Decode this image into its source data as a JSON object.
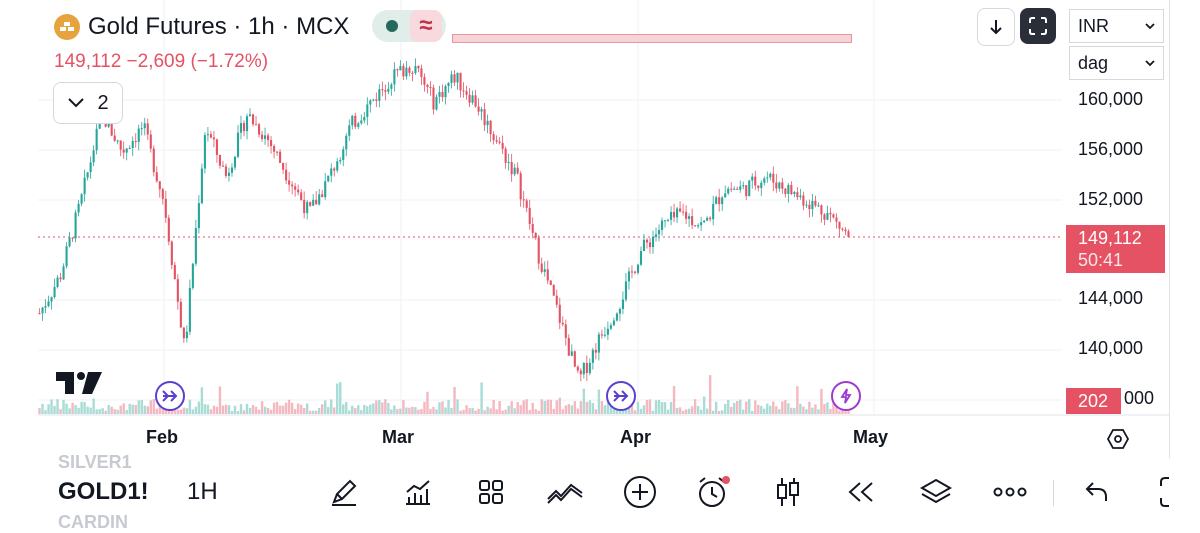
{
  "header": {
    "title": "Gold Futures · 1h · MCX",
    "price_line": "149,112 −2,609 (−1.72%)",
    "approx_symbol": "≈",
    "collapse_count": "2",
    "currency": "INR",
    "interval_unit": "dag"
  },
  "price_axis": {
    "ticks": [
      "160,000",
      "156,000",
      "152,000",
      "144,000",
      "140,000",
      "000"
    ]
  },
  "time_axis": {
    "labels": [
      "Feb",
      "Mar",
      "Apr",
      "May"
    ]
  },
  "last_price_tag": {
    "price": "149,112",
    "countdown": "50:41"
  },
  "volume_tag": "202",
  "bottom_bar": {
    "symbol": "GOLD1!",
    "timeframe": "1H",
    "ghost_above": "SILVER1",
    "ghost_below": "CARDIN",
    "tools": [
      "drawing-pen-icon",
      "indicators-icon",
      "templates-grid-icon",
      "compare-icon",
      "add-icon",
      "alert-clock-icon",
      "candle-type-icon",
      "replay-icon",
      "layers-icon",
      "more-icon",
      "undo-icon",
      "fullscreen-icon"
    ]
  },
  "markers": [
    "event-marker-arrow-icon",
    "event-marker-arrow-icon",
    "lightning-marker-icon"
  ],
  "colors": {
    "up": "#26a69a",
    "down": "#e45264",
    "accent": "#e45264",
    "marker": "#5b3fd0",
    "lightning": "#9b3bd1"
  },
  "chart_data": {
    "type": "candlestick",
    "timeframe": "1h",
    "x_labels": [
      "Feb",
      "Mar",
      "Apr",
      "May"
    ],
    "ylim": [
      137000,
      164000
    ],
    "y_ticks": [
      140000,
      144000,
      152000,
      156000,
      160000
    ],
    "last_price": 149112,
    "close_path": [
      [
        "Jan-14",
        143000
      ],
      [
        "Jan-17",
        146000
      ],
      [
        "Jan-20",
        152000
      ],
      [
        "Jan-23",
        159000
      ],
      [
        "Jan-26",
        156000
      ],
      [
        "Jan-28",
        158000
      ],
      [
        "Jan-30",
        152000
      ],
      [
        "Feb-01",
        140000
      ],
      [
        "Feb-03",
        158000
      ],
      [
        "Feb-06",
        154000
      ],
      [
        "Feb-08",
        159000
      ],
      [
        "Feb-11",
        157000
      ],
      [
        "Feb-13",
        154000
      ],
      [
        "Feb-16",
        151000
      ],
      [
        "Feb-18",
        154000
      ],
      [
        "Feb-21",
        158000
      ],
      [
        "Feb-23",
        160000
      ],
      [
        "Feb-26",
        162000
      ],
      [
        "Mar-01",
        163000
      ],
      [
        "Mar-04",
        160000
      ],
      [
        "Mar-07",
        162000
      ],
      [
        "Mar-09",
        160000
      ],
      [
        "Mar-12",
        157000
      ],
      [
        "Mar-15",
        154000
      ],
      [
        "Mar-18",
        148000
      ],
      [
        "Mar-20",
        143000
      ],
      [
        "Mar-22",
        137500
      ],
      [
        "Mar-24",
        141000
      ],
      [
        "Mar-27",
        144000
      ],
      [
        "Mar-30",
        148000
      ],
      [
        "Apr-01",
        150000
      ],
      [
        "Apr-03",
        151000
      ],
      [
        "Apr-06",
        150000
      ],
      [
        "Apr-09",
        153000
      ],
      [
        "Apr-12",
        153000
      ],
      [
        "Apr-15",
        154000
      ],
      [
        "Apr-18",
        153000
      ],
      [
        "Apr-21",
        152000
      ],
      [
        "Apr-24",
        151000
      ],
      [
        "Apr-27",
        149112
      ]
    ]
  }
}
